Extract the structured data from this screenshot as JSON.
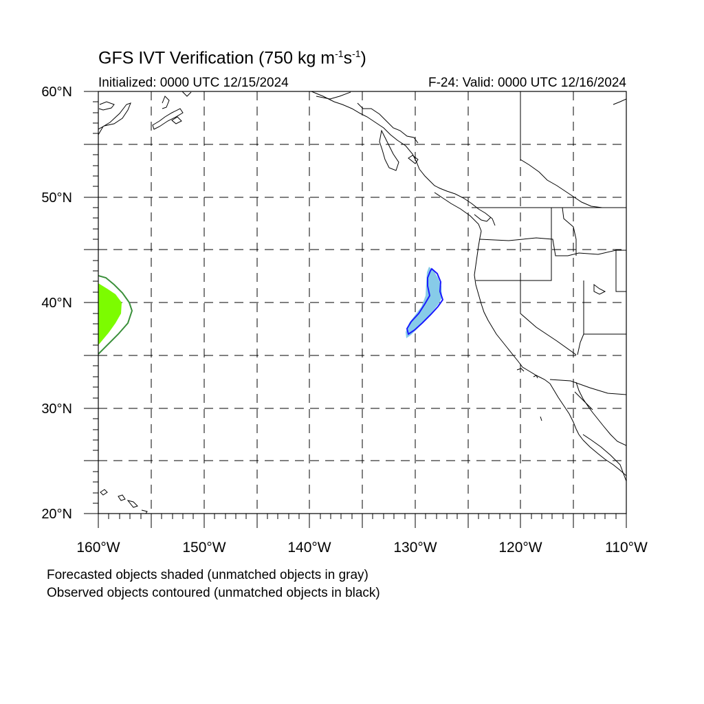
{
  "header": {
    "title_main": "GFS IVT Verification (750 kg m",
    "title_exp1": "-1",
    "title_mid": "s",
    "title_exp2": "-1",
    "title_end": ")",
    "initialized": "Initialized: 0000 UTC 12/15/2024",
    "valid": "F-24: Valid: 0000 UTC 12/16/2024"
  },
  "map": {
    "lon_range": [
      -160,
      -110
    ],
    "lat_range": [
      20,
      60
    ],
    "lat_labels": [
      "60°N",
      "50°N",
      "40°N",
      "30°N",
      "20°N"
    ],
    "lon_labels": [
      "160°W",
      "150°W",
      "140°W",
      "130°W",
      "120°W",
      "110°W"
    ],
    "gridlines": "dashed every 5°",
    "objects": [
      {
        "kind": "forecast-shaded",
        "color": "#7cfc00",
        "region": "west edge near 38°N"
      },
      {
        "kind": "observed-contour",
        "color": "#3a8f3a",
        "region": "west edge near 38°N"
      },
      {
        "kind": "forecast-shaded",
        "color": "#87cbe8",
        "region": "near 129°W 40°N"
      },
      {
        "kind": "observed-contour",
        "color": "#1a1aff",
        "region": "near 129°W 40°N"
      }
    ]
  },
  "notes": {
    "forecast": "Forecasted objects shaded (unmatched objects in gray)",
    "observed": "Observed objects contoured (unmatched objects in black)"
  }
}
